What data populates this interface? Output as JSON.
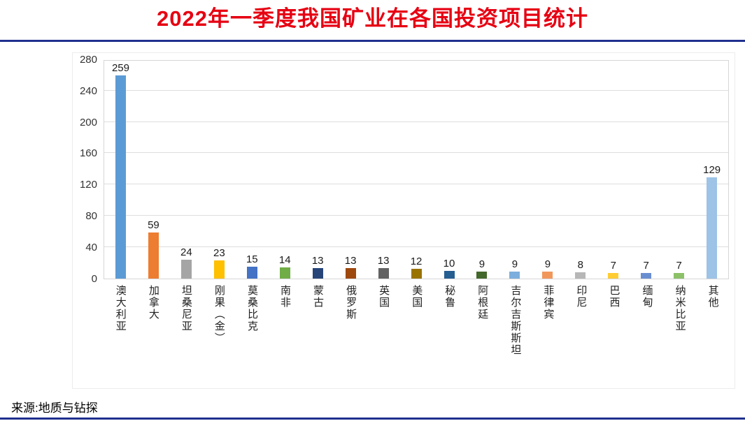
{
  "title": "2022年一季度我国矿业在各国投资项目统计",
  "source": "来源:地质与钻探",
  "colors": {
    "title": "#e60012",
    "rule": "#1f2f8e",
    "grid": "#dedede",
    "plot_border": "#d6d6d6"
  },
  "chart_data": {
    "type": "bar",
    "title": "2022年一季度我国矿业在各国投资项目统计",
    "categories": [
      "澳大利亚",
      "加拿大",
      "坦桑尼亚",
      "刚果（金）",
      "莫桑比克",
      "南非",
      "蒙古",
      "俄罗斯",
      "英国",
      "美国",
      "秘鲁",
      "阿根廷",
      "吉尔吉斯斯坦",
      "菲律宾",
      "印尼",
      "巴西",
      "缅甸",
      "纳米比亚",
      "其他"
    ],
    "values": [
      259,
      59,
      24,
      23,
      15,
      14,
      13,
      13,
      13,
      12,
      10,
      9,
      9,
      9,
      8,
      7,
      7,
      7,
      129
    ],
    "bar_colors": [
      "#5B9BD5",
      "#ED7D31",
      "#A5A5A5",
      "#FFC000",
      "#4472C4",
      "#70AD47",
      "#264478",
      "#9E480E",
      "#636363",
      "#997300",
      "#255E91",
      "#43682B",
      "#7CAFDD",
      "#F1975A",
      "#B7B7B7",
      "#FFCD33",
      "#698ED0",
      "#8CC168",
      "#9DC3E6"
    ],
    "xlabel": "",
    "ylabel": "",
    "ylim": [
      0,
      280
    ],
    "yticks": [
      0,
      40,
      80,
      120,
      160,
      200,
      240,
      280
    ],
    "grid": true,
    "legend": "none",
    "data_labels": true
  }
}
